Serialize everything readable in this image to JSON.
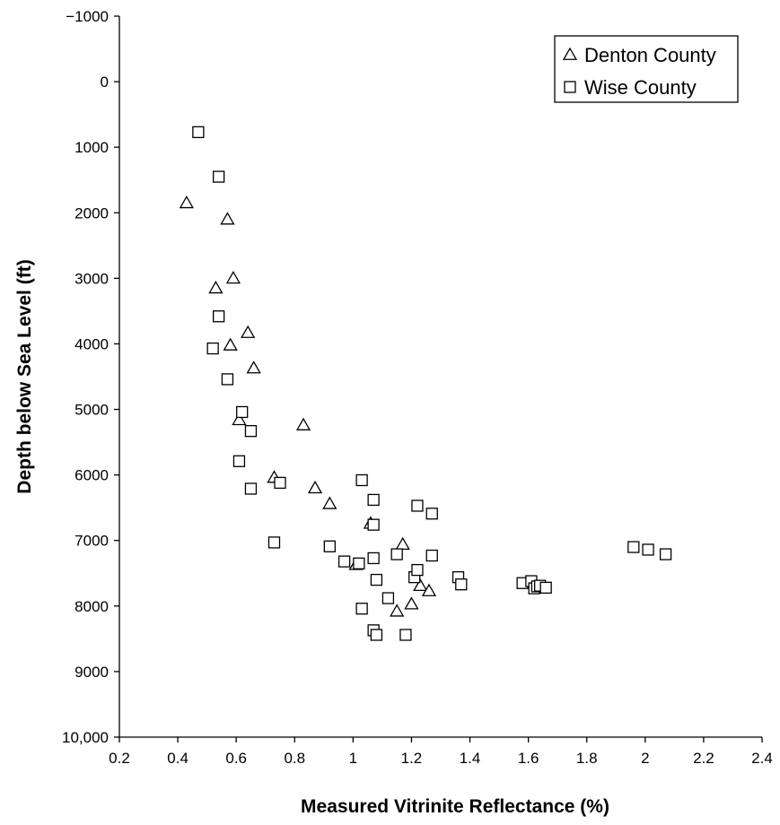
{
  "chart_data": {
    "type": "scatter",
    "xlabel": "Measured Vitrinite Reflectance (%)",
    "ylabel": "Depth below Sea Level (ft)",
    "xlim": [
      0.2,
      2.4
    ],
    "ylim": [
      -1000,
      10000
    ],
    "y_inverted": true,
    "grid": false,
    "legend_position": "top-right",
    "x_ticks": [
      0.2,
      0.4,
      0.6,
      0.8,
      1,
      1.2,
      1.4,
      1.6,
      1.8,
      2,
      2.2,
      2.4
    ],
    "x_tick_labels": [
      "0.2",
      "0.4",
      "0.6",
      "0.8",
      "1",
      "1.2",
      "1.4",
      "1.6",
      "1.8",
      "2",
      "2.2",
      "2.4"
    ],
    "y_ticks": [
      -1000,
      0,
      1000,
      2000,
      3000,
      4000,
      5000,
      6000,
      7000,
      8000,
      9000,
      10000
    ],
    "y_tick_labels": [
      "−1000",
      "0",
      "1000",
      "2000",
      "3000",
      "4000",
      "5000",
      "6000",
      "7000",
      "8000",
      "9000",
      "10,000"
    ],
    "series": [
      {
        "name": "Denton County",
        "marker": "triangle",
        "x": [
          0.43,
          0.57,
          0.59,
          0.53,
          0.64,
          0.58,
          0.66,
          0.61,
          0.83,
          0.73,
          0.87,
          0.92,
          1.06,
          1.17,
          1.01,
          1.23,
          1.26,
          1.2,
          1.15
        ],
        "y": [
          1850,
          2100,
          3000,
          3150,
          3830,
          4020,
          4370,
          5160,
          5240,
          6040,
          6200,
          6440,
          6740,
          7060,
          7370,
          7690,
          7770,
          7970,
          8080
        ]
      },
      {
        "name": "Wise County",
        "marker": "square",
        "x": [
          0.47,
          0.54,
          0.54,
          0.52,
          0.57,
          0.62,
          0.65,
          0.61,
          0.65,
          0.75,
          0.73,
          0.92,
          0.97,
          1.02,
          1.03,
          1.07,
          1.07,
          1.07,
          1.08,
          1.03,
          1.07,
          1.08,
          1.12,
          1.15,
          1.18,
          1.21,
          1.22,
          1.22,
          1.27,
          1.27,
          1.36,
          1.37,
          1.58,
          1.61,
          1.62,
          1.63,
          1.64,
          1.66,
          1.96,
          2.01,
          2.07
        ],
        "y": [
          770,
          1450,
          3580,
          4070,
          4540,
          5040,
          5330,
          5790,
          6210,
          6120,
          7030,
          7090,
          7320,
          7350,
          6080,
          6380,
          6760,
          7270,
          7600,
          8040,
          8370,
          8440,
          7880,
          7210,
          8440,
          7560,
          7450,
          6470,
          6590,
          7230,
          7560,
          7670,
          7650,
          7620,
          7730,
          7700,
          7690,
          7720,
          7100,
          7140,
          7210
        ]
      }
    ]
  }
}
